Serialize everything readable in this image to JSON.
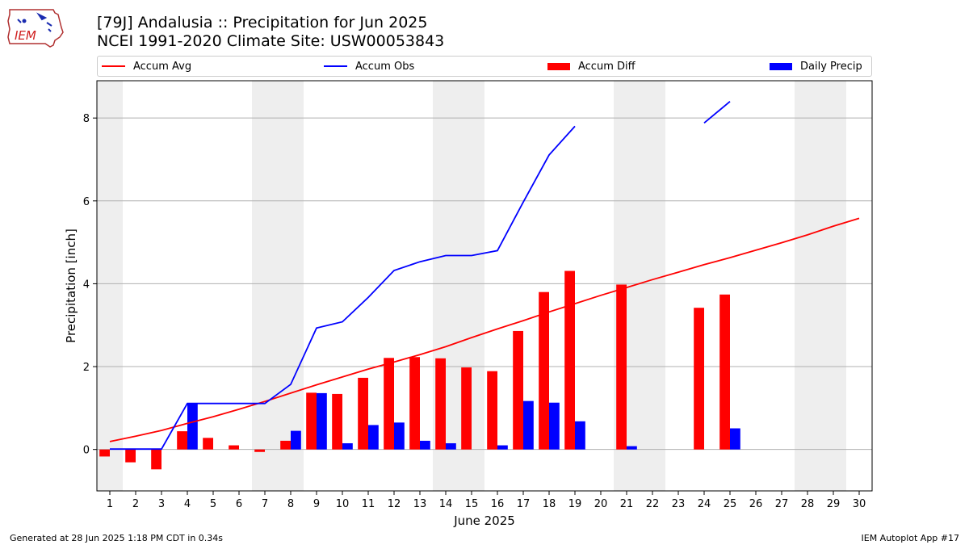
{
  "header": {
    "title_line1": "[79J] Andalusia :: Precipitation for Jun 2025",
    "title_line2": "NCEI 1991-2020 Climate Site: USW00053843",
    "logo_text": "IEM"
  },
  "footer": {
    "left": "Generated at 28 Jun 2025 1:18 PM CDT in 0.34s",
    "right": "IEM Autoplot App #17"
  },
  "colors": {
    "avg": "#ff0000",
    "obs": "#0000ff",
    "diff": "#ff0000",
    "daily": "#0000ff",
    "weekend_band": "#eeeeee",
    "grid": "#b0b0b0"
  },
  "chart_data": {
    "type": "bar",
    "xlabel": "June 2025",
    "ylabel": "Precipitation [inch]",
    "ylim": [
      -1,
      8.9
    ],
    "xlim": [
      0.5,
      30.5
    ],
    "yticks": [
      0,
      2,
      4,
      6,
      8
    ],
    "grid": "horizontal",
    "legend_position": "top",
    "categories": [
      "1",
      "2",
      "3",
      "4",
      "5",
      "6",
      "7",
      "8",
      "9",
      "10",
      "11",
      "12",
      "13",
      "14",
      "15",
      "16",
      "17",
      "18",
      "19",
      "20",
      "21",
      "22",
      "23",
      "24",
      "25",
      "26",
      "27",
      "28",
      "29",
      "30"
    ],
    "weekend_days": [
      1,
      7,
      8,
      14,
      15,
      21,
      22,
      28,
      29
    ],
    "series": [
      {
        "name": "Accum Avg",
        "kind": "line",
        "values": [
          0.19,
          0.32,
          0.46,
          0.63,
          0.79,
          0.97,
          1.16,
          1.36,
          1.56,
          1.75,
          1.94,
          2.11,
          2.29,
          2.48,
          2.7,
          2.91,
          3.11,
          3.32,
          3.52,
          3.72,
          3.91,
          4.1,
          4.28,
          4.46,
          4.63,
          4.81,
          4.99,
          5.18,
          5.39,
          5.58
        ]
      },
      {
        "name": "Accum Obs",
        "kind": "line",
        "values": [
          0.01,
          0.01,
          0.01,
          1.11,
          1.11,
          1.11,
          1.11,
          1.57,
          2.93,
          3.08,
          3.67,
          4.32,
          4.53,
          4.68,
          4.68,
          4.8,
          5.97,
          7.11,
          7.8,
          null,
          null,
          null,
          null,
          7.88,
          8.4,
          null,
          null,
          null,
          null,
          null
        ]
      },
      {
        "name": "Accum Diff",
        "kind": "bar",
        "values": [
          -0.17,
          -0.31,
          -0.48,
          0.44,
          0.28,
          0.1,
          -0.06,
          0.21,
          1.37,
          1.34,
          1.73,
          2.21,
          2.23,
          2.2,
          1.98,
          1.89,
          2.86,
          3.8,
          4.31,
          null,
          3.98,
          null,
          null,
          3.42,
          3.74,
          null,
          null,
          null,
          null,
          null
        ]
      },
      {
        "name": "Daily Precip",
        "kind": "bar",
        "values": [
          0,
          0,
          0,
          1.1,
          0,
          0,
          0,
          0.45,
          1.36,
          0.15,
          0.59,
          0.65,
          0.21,
          0.15,
          0,
          0.1,
          1.17,
          1.13,
          0.68,
          null,
          0.08,
          null,
          null,
          null,
          0.51,
          null,
          null,
          null,
          null,
          null
        ]
      }
    ]
  }
}
